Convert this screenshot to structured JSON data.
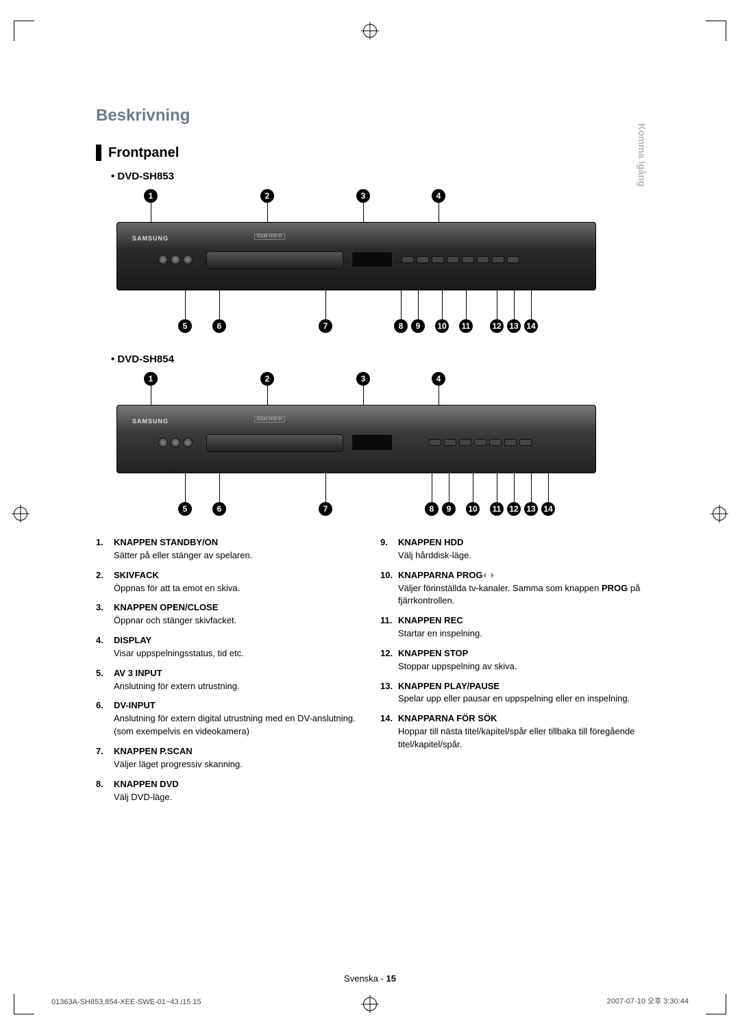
{
  "sideTab": "Komma igång",
  "sectionTitle": "Beskrivning",
  "subsectionTitle": "Frontpanel",
  "models": {
    "a": "• DVD-SH853",
    "b": "• DVD-SH854"
  },
  "deviceBrand": "SAMSUNG",
  "deviceBadge": "RAM-RW-R",
  "callouts": {
    "top": [
      "1",
      "2",
      "3",
      "4"
    ],
    "bottom": [
      "5",
      "6",
      "7",
      "8",
      "9",
      "10",
      "11",
      "12",
      "13",
      "14"
    ]
  },
  "legend": {
    "left": [
      {
        "head": "KNAPPEN STANDBY/ON",
        "desc": "Sätter på eller stänger av spelaren."
      },
      {
        "head": "SKIVFACK",
        "desc": "Öppnas för att ta emot en skiva."
      },
      {
        "head": "KNAPPEN OPEN/CLOSE",
        "desc": "Öppnar och stänger skivfacket."
      },
      {
        "head": "DISPLAY",
        "desc": "Visar uppspelningsstatus, tid etc."
      },
      {
        "head": "AV 3 INPUT",
        "desc": "Anslutning för extern utrustning."
      },
      {
        "head": "DV-INPUT",
        "desc": "Anslutning för extern digital utrustning med en DV-anslutning. (som exempelvis en videokamera)"
      },
      {
        "head": "KNAPPEN P.SCAN",
        "desc": "Väljer läget progressiv skanning."
      },
      {
        "head": "KNAPPEN DVD",
        "desc": "Välj DVD-läge."
      }
    ],
    "right": [
      {
        "head": "KNAPPEN HDD",
        "desc": "Välj hårddisk-läge."
      },
      {
        "head": "KNAPPARNA PROG",
        "progArrows": true,
        "desc": "Väljer förinställda tv-kanaler. Samma som knappen ",
        "desc2strong": "PROG",
        "desc2": " på fjärrkontrollen."
      },
      {
        "head": "KNAPPEN REC",
        "desc": "Startar en inspelning."
      },
      {
        "head": "KNAPPEN STOP",
        "desc": "Stoppar uppspelning av skiva."
      },
      {
        "head": "KNAPPEN PLAY/PAUSE",
        "desc": "Spelar upp eller pausar en uppspelning eller en inspelning."
      },
      {
        "head": "KNAPPARNA FÖR SÖK",
        "desc": "Hoppar till nästa titel/kapitel/spår eller tillbaka till föregående titel/kapitel/spår."
      }
    ]
  },
  "footer": {
    "lang": "Svenska -",
    "page": "15"
  },
  "printFooter": {
    "left": "01363A-SH853,854-XEE-SWE-01~43.i15   15",
    "right": "2007-07-10   오후 3:30:44"
  },
  "colors": {
    "titleColor": "#6b7a8f",
    "sideTabColor": "#b8b8b8",
    "text": "#000000",
    "bg": "#ffffff"
  }
}
